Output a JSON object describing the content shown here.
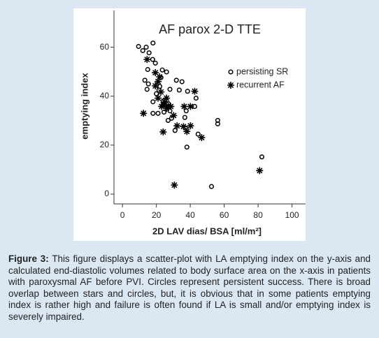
{
  "chart_data": {
    "type": "scatter",
    "title": "AF parox 2-D TTE",
    "x_label": "2D LAV dias/ BSA [ml/m²]",
    "y_label": "emptying index",
    "xlim": [
      -5,
      108
    ],
    "ylim": [
      -4,
      75
    ],
    "xticks": [
      0,
      20,
      40,
      60,
      80,
      100
    ],
    "yticks": [
      0,
      20,
      40,
      60
    ],
    "legend": "upper right",
    "series": [
      {
        "name": "persisting SR",
        "color": "#000000",
        "marker": "circle",
        "x": [
          9.5,
          14,
          18,
          12,
          15.7,
          17.8,
          19.4,
          14.9,
          23.5,
          26,
          22.7,
          13.2,
          15.3,
          31.8,
          35.1,
          14.5,
          21.5,
          28,
          33.5,
          38.4,
          43.4,
          18,
          25,
          28,
          37.6,
          42.6,
          18,
          21,
          26.9,
          36.8,
          37.2,
          31,
          44.6,
          56.2,
          56.2,
          38,
          82.2,
          52.5,
          20,
          24,
          27,
          22,
          29,
          24.5
        ],
        "values": [
          60.3,
          60,
          61.7,
          58.6,
          57.7,
          55,
          53.5,
          50.9,
          50.7,
          49.9,
          47.6,
          46.5,
          45,
          46.5,
          45.9,
          42.8,
          42.5,
          42.8,
          42.5,
          42,
          39.2,
          37.7,
          36.3,
          34,
          34,
          35.8,
          33,
          33,
          30.1,
          31.3,
          27,
          26,
          24.5,
          30.1,
          28.7,
          19.2,
          15.2,
          3.1,
          41,
          38,
          37,
          44,
          31,
          33.5
        ]
      },
      {
        "name": "recurrent AF",
        "color": "#000000",
        "marker": "star",
        "x": [
          14.5,
          19.4,
          21.9,
          19.4,
          22.7,
          21,
          26,
          23.1,
          28.5,
          36.4,
          40.1,
          42.6,
          12.4,
          30.2,
          32.2,
          36,
          40.1,
          38,
          24,
          46.7,
          30.6,
          80.9,
          24,
          26,
          25,
          27,
          21
        ],
        "values": [
          55,
          49.6,
          47.9,
          44.2,
          41.7,
          39.2,
          39.2,
          35.8,
          35.8,
          35.8,
          35.8,
          42,
          33,
          32.1,
          27.9,
          27.6,
          27.9,
          25.6,
          25.4,
          23.1,
          3.7,
          9.6,
          36.5,
          35,
          37.5,
          36,
          46
        ]
      }
    ]
  },
  "caption": {
    "label": "Figure 3:",
    "text": "This figure displays a scatter-plot with LA emptying index on the y-axis and calculated end-diastolic volumes related to body surface area on the x-axis in patients with paroxysmal AF before PVI. Circles represent persistent success. There is broad overlap between stars and circles, but, it is obvious that in some patients emptying index is rather high and failure is often found if LA is small and/or emptying index is severely impaired."
  }
}
